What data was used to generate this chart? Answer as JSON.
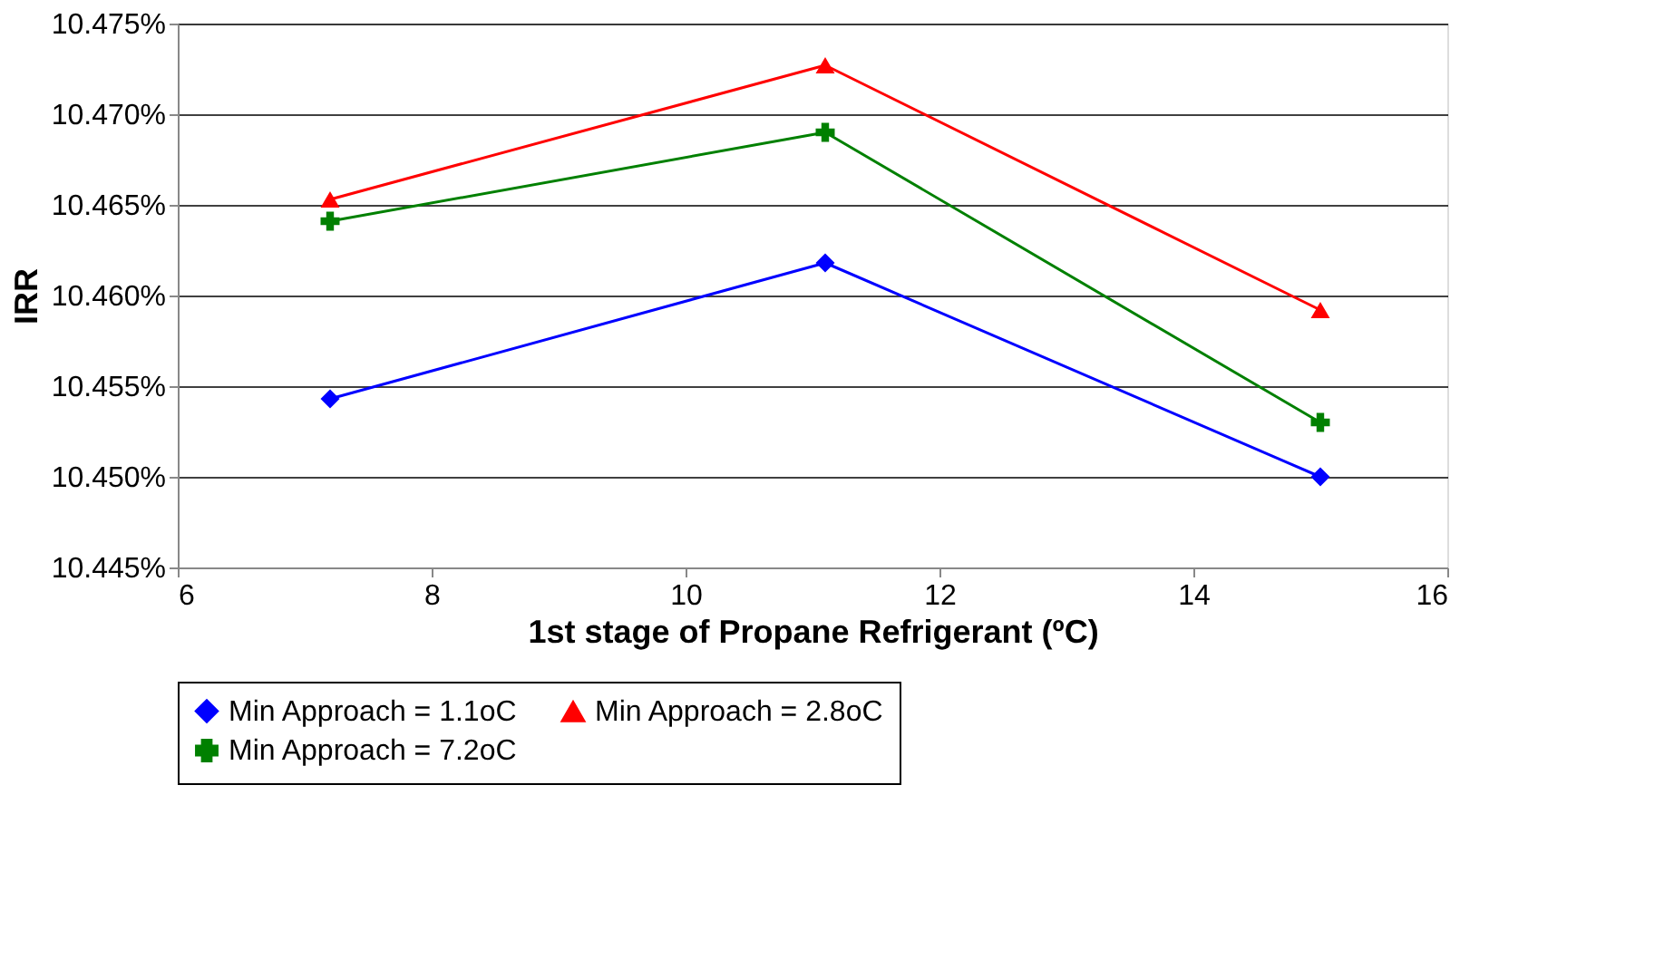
{
  "chart_data": {
    "type": "line",
    "xlabel": "1st stage of Propane Refrigerant (ºC)",
    "ylabel": "IRR",
    "x": [
      7.2,
      11.1,
      15
    ],
    "series": [
      {
        "name": "Min Approach = 1.1oC",
        "color": "#0000ff",
        "marker": "diamond",
        "values": [
          10.4543,
          10.4618,
          10.45
        ]
      },
      {
        "name": "Min Approach = 2.8oC",
        "color": "#ff0000",
        "marker": "triangle",
        "values": [
          10.4653,
          10.4727,
          10.4592
        ]
      },
      {
        "name": "Min Approach = 7.2oC",
        "color": "#008000",
        "marker": "cross",
        "values": [
          10.4641,
          10.469,
          10.453
        ]
      }
    ],
    "xlim": [
      6,
      16
    ],
    "xticks": [
      6,
      8,
      10,
      12,
      14,
      16
    ],
    "ylim": [
      10.445,
      10.475
    ],
    "yticks": [
      {
        "value": 10.445,
        "label": "10.445%"
      },
      {
        "value": 10.45,
        "label": "10.450%"
      },
      {
        "value": 10.455,
        "label": "10.455%"
      },
      {
        "value": 10.46,
        "label": "10.460%"
      },
      {
        "value": 10.465,
        "label": "10.465%"
      },
      {
        "value": 10.47,
        "label": "10.470%"
      },
      {
        "value": 10.475,
        "label": "10.475%"
      }
    ],
    "grid": "y",
    "legend": "bottom",
    "line_style": "solid"
  }
}
